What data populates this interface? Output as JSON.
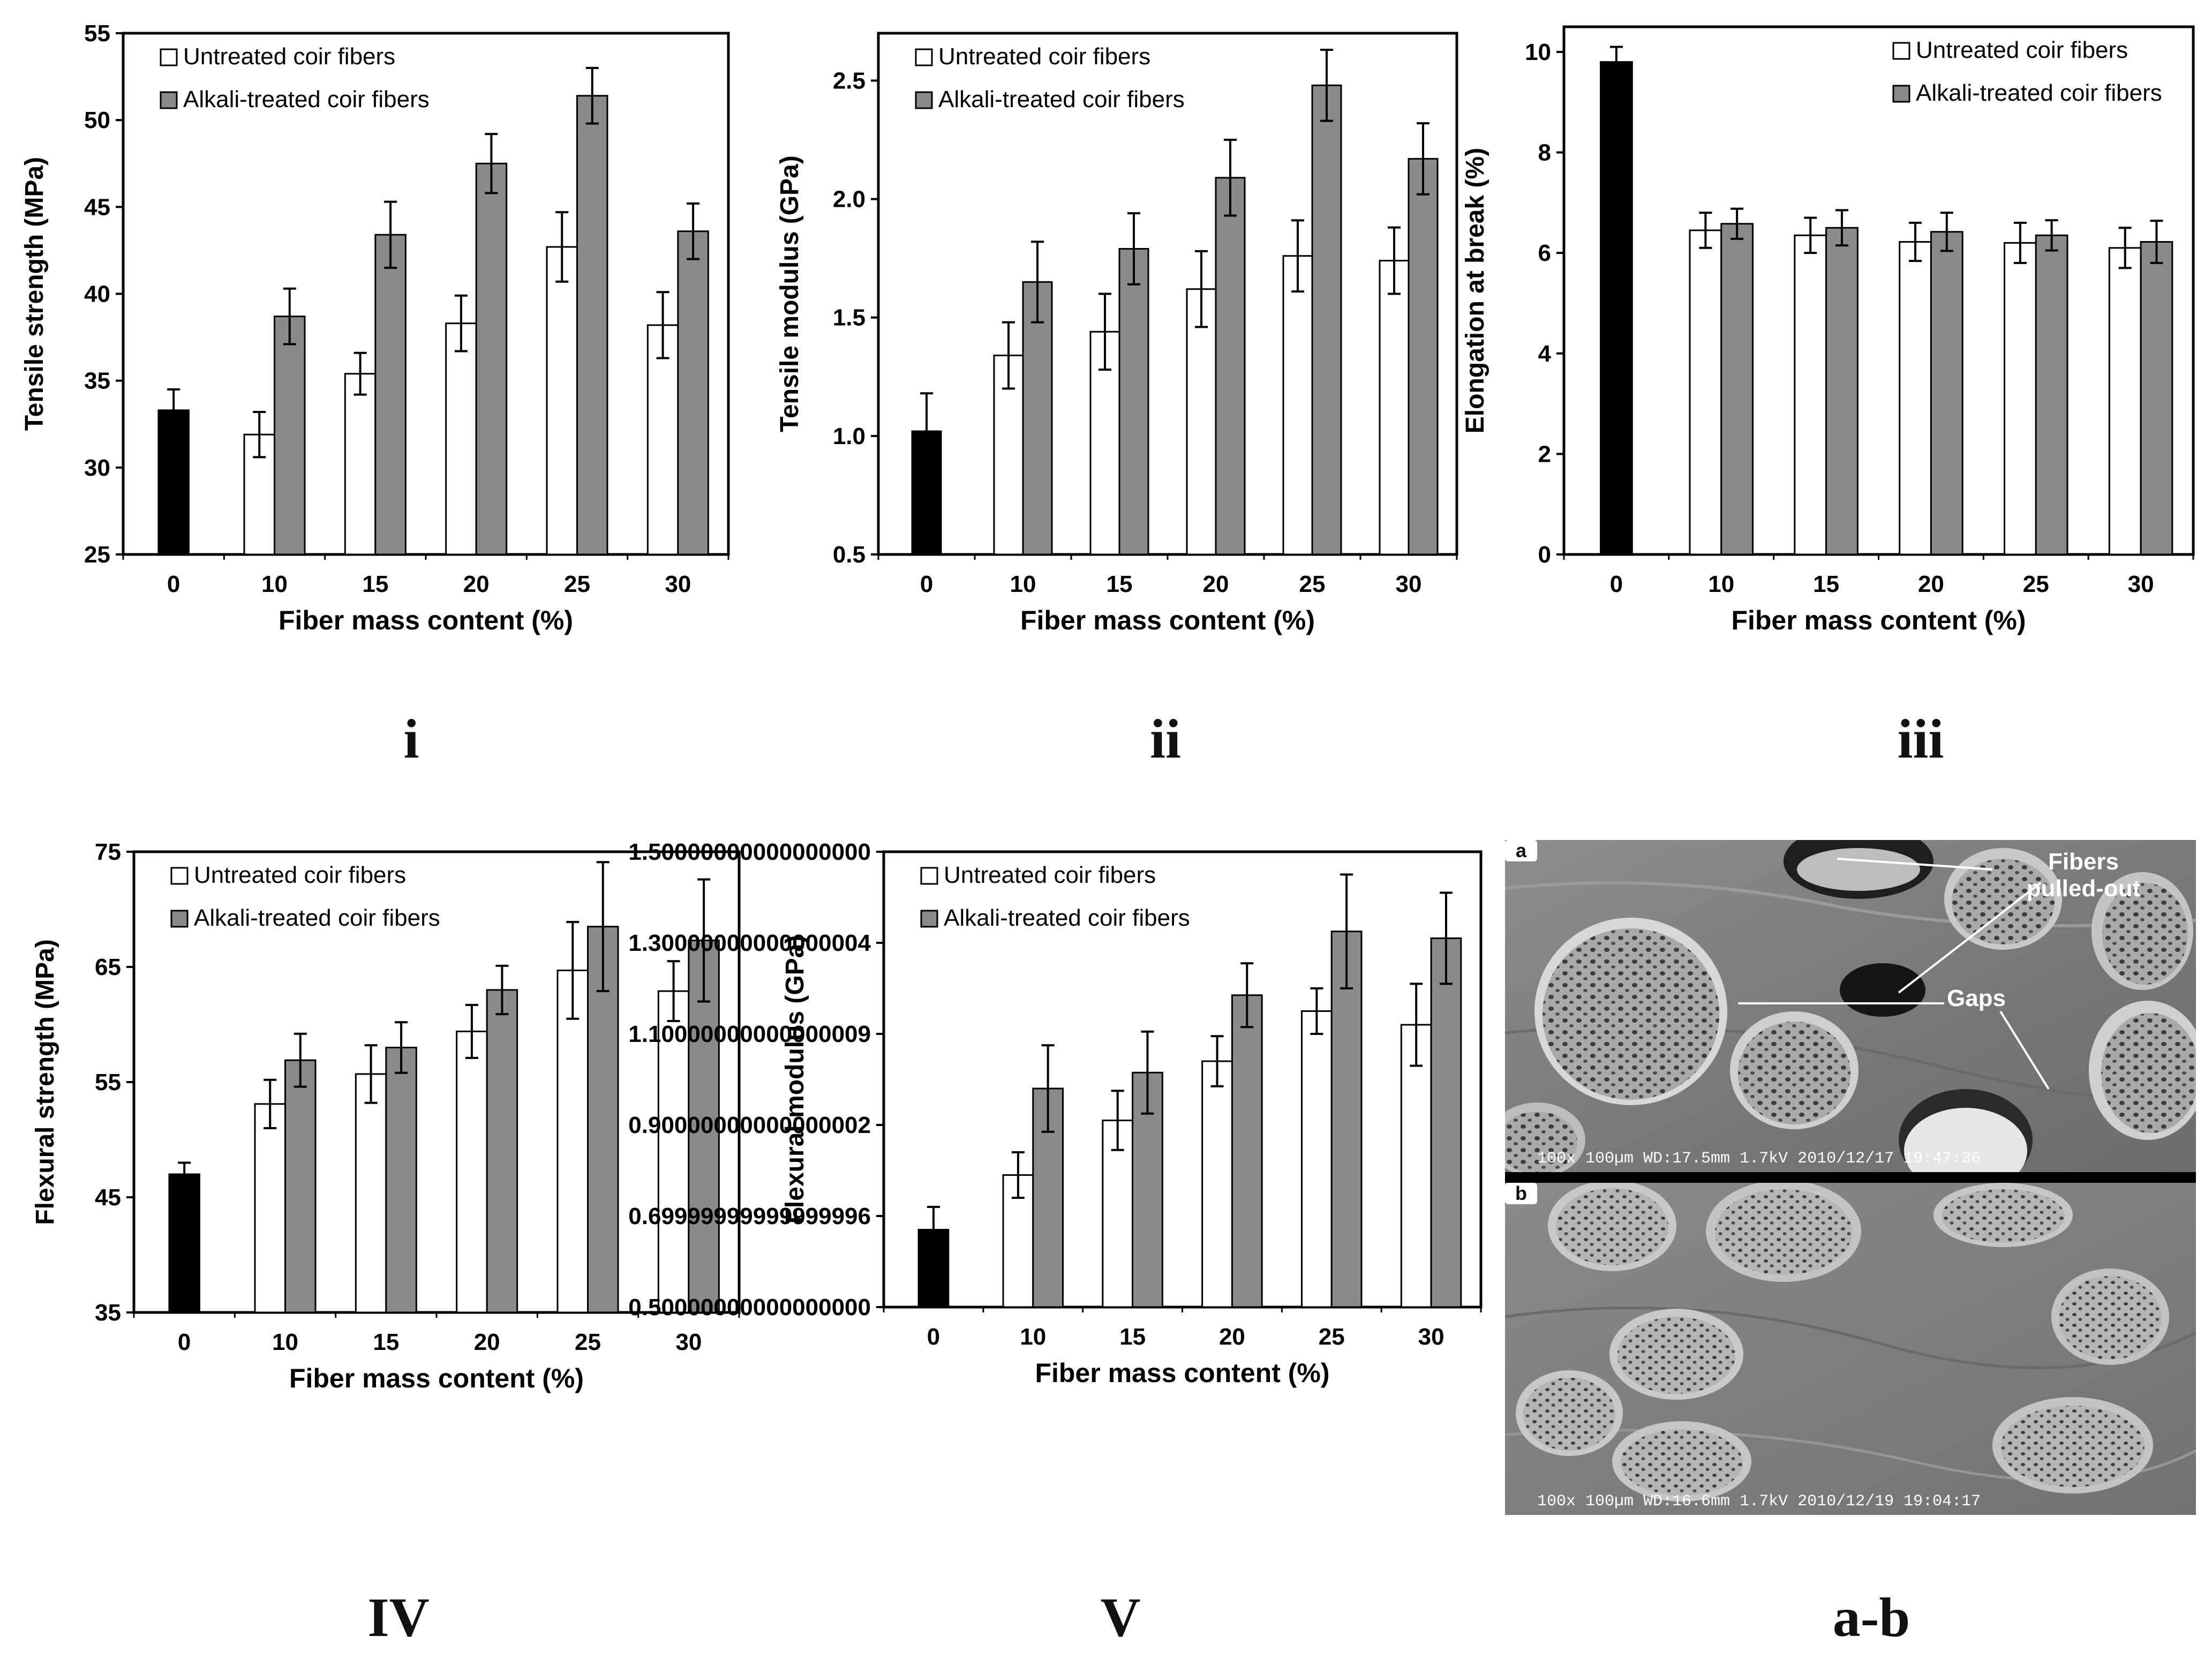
{
  "figure": {
    "colors": {
      "untreated": "#ffffff",
      "treated": "#8a8a8a",
      "control": "#000000",
      "axis": "#000000"
    },
    "panel_labels": {
      "i": "i",
      "ii": "ii",
      "iii": "iii",
      "iv": "IV",
      "v": "V",
      "ab": "a-b"
    }
  },
  "chart_data": [
    {
      "id": "i",
      "type": "bar",
      "xlabel": "Fiber mass content (%)",
      "ylabel": "Tensile strength (MPa)",
      "ylim": [
        25,
        55
      ],
      "yticks": [
        25,
        30,
        35,
        40,
        45,
        50,
        55
      ],
      "categories": [
        "0",
        "10",
        "15",
        "20",
        "25",
        "30"
      ],
      "legend": {
        "position": "top-left"
      },
      "control": {
        "category": "0",
        "value": 33.3,
        "error": 1.2
      },
      "series": [
        {
          "name": "Untreated coir fibers",
          "values": [
            null,
            31.9,
            35.4,
            38.3,
            42.7,
            38.2
          ],
          "errors": [
            null,
            1.3,
            1.2,
            1.6,
            2.0,
            1.9
          ]
        },
        {
          "name": "Alkali-treated coir fibers",
          "values": [
            null,
            38.7,
            43.4,
            47.5,
            51.4,
            43.6
          ],
          "errors": [
            null,
            1.6,
            1.9,
            1.7,
            1.6,
            1.6
          ]
        }
      ]
    },
    {
      "id": "ii",
      "type": "bar",
      "xlabel": "Fiber mass content (%)",
      "ylabel": "Tensile modulus (GPa)",
      "ylim": [
        0.5,
        2.7
      ],
      "yticks": [
        0.5,
        1.0,
        1.5,
        2.0,
        2.5
      ],
      "categories": [
        "0",
        "10",
        "15",
        "20",
        "25",
        "30"
      ],
      "legend": {
        "position": "top-left"
      },
      "control": {
        "category": "0",
        "value": 1.02,
        "error": 0.16
      },
      "series": [
        {
          "name": "Untreated coir fibers",
          "values": [
            null,
            1.34,
            1.44,
            1.62,
            1.76,
            1.74
          ],
          "errors": [
            null,
            0.14,
            0.16,
            0.16,
            0.15,
            0.14
          ]
        },
        {
          "name": "Alkali-treated coir fibers",
          "values": [
            null,
            1.65,
            1.79,
            2.09,
            2.48,
            2.17
          ],
          "errors": [
            null,
            0.17,
            0.15,
            0.16,
            0.15,
            0.15
          ]
        }
      ]
    },
    {
      "id": "iii",
      "type": "bar",
      "xlabel": "Fiber mass content (%)",
      "ylabel": "Elongation at break (%)",
      "ylim": [
        0,
        10.5
      ],
      "yticks": [
        0,
        2,
        4,
        6,
        8,
        10
      ],
      "categories": [
        "0",
        "10",
        "15",
        "20",
        "25",
        "30"
      ],
      "legend": {
        "position": "top-right"
      },
      "control": {
        "category": "0",
        "value": 9.8,
        "error": 0.3
      },
      "series": [
        {
          "name": "Untreated coir fibers",
          "values": [
            null,
            6.45,
            6.35,
            6.22,
            6.2,
            6.1
          ],
          "errors": [
            null,
            0.35,
            0.35,
            0.38,
            0.4,
            0.4
          ]
        },
        {
          "name": "Alkali-treated coir fibers",
          "values": [
            null,
            6.58,
            6.5,
            6.42,
            6.35,
            6.22
          ],
          "errors": [
            null,
            0.3,
            0.35,
            0.38,
            0.3,
            0.42
          ]
        }
      ]
    },
    {
      "id": "iv",
      "type": "bar",
      "xlabel": "Fiber mass content (%)",
      "ylabel": "Flexural strength (MPa)",
      "ylim": [
        35,
        75
      ],
      "yticks": [
        35,
        45,
        55,
        65,
        75
      ],
      "categories": [
        "0",
        "10",
        "15",
        "20",
        "25",
        "30"
      ],
      "legend": {
        "position": "top-left"
      },
      "control": {
        "category": "0",
        "value": 47.0,
        "error": 1.0
      },
      "series": [
        {
          "name": "Untreated coir fibers",
          "values": [
            null,
            53.1,
            55.7,
            59.4,
            64.7,
            62.9
          ],
          "errors": [
            null,
            2.1,
            2.5,
            2.3,
            4.2,
            2.6
          ]
        },
        {
          "name": "Alkali-treated coir fibers",
          "values": [
            null,
            56.9,
            58.0,
            63.0,
            68.5,
            67.3
          ],
          "errors": [
            null,
            2.3,
            2.2,
            2.1,
            5.6,
            5.3
          ]
        }
      ]
    },
    {
      "id": "v",
      "type": "bar",
      "xlabel": "Fiber mass content (%)",
      "ylabel": "Flexural modulus (GPa)",
      "ylim": [
        0.5,
        1.5
      ],
      "yticks": [
        0.5,
        0.7,
        0.9,
        1.1,
        1.3,
        1.5
      ],
      "categories": [
        "0",
        "10",
        "15",
        "20",
        "25",
        "30"
      ],
      "legend": {
        "position": "top-left"
      },
      "control": {
        "category": "0",
        "value": 0.67,
        "error": 0.05
      },
      "series": [
        {
          "name": "Untreated coir fibers",
          "values": [
            null,
            0.79,
            0.91,
            1.04,
            1.15,
            1.12
          ],
          "errors": [
            null,
            0.05,
            0.065,
            0.055,
            0.05,
            0.09
          ]
        },
        {
          "name": "Alkali-treated coir fibers",
          "values": [
            null,
            0.98,
            1.015,
            1.185,
            1.325,
            1.31
          ],
          "errors": [
            null,
            0.095,
            0.09,
            0.07,
            0.125,
            0.1
          ]
        }
      ]
    }
  ],
  "micrographs": {
    "a": {
      "tag": "a",
      "annotations": [
        "Fibers pulled-out",
        "Gaps"
      ],
      "info_bar": "100x  100µm  WD:17.5mm  1.7kV  2010/12/17 19:47:36"
    },
    "b": {
      "tag": "b",
      "info_bar": "100x  100µm  WD:16.6mm  1.7kV  2010/12/19 19:04:17"
    }
  }
}
